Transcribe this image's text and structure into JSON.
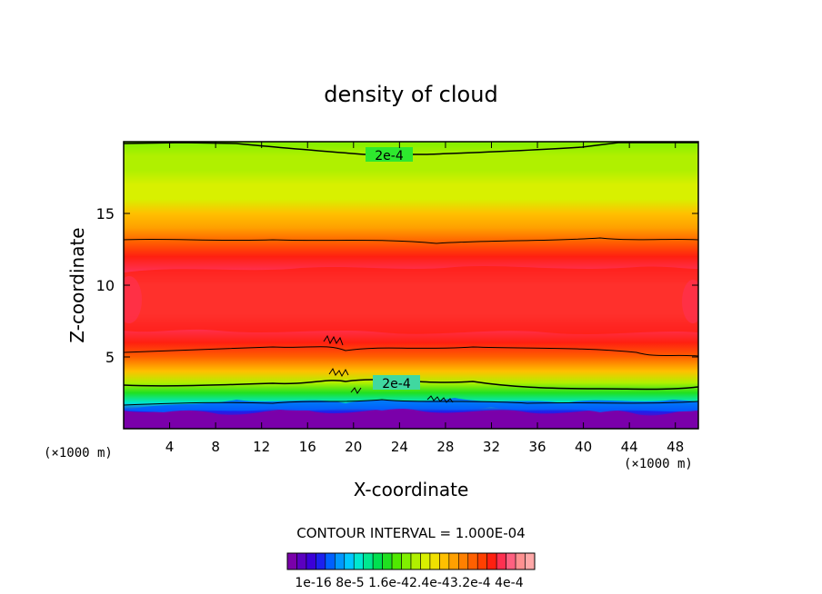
{
  "chart_data": {
    "type": "heatmap",
    "title": "density of cloud",
    "xlabel": "X-coordinate",
    "ylabel": "Z-coordinate",
    "x_unit": "(×1000 m)",
    "z_unit": "(×1000 m)",
    "xlim": [
      0,
      50
    ],
    "ylim": [
      0,
      20
    ],
    "x_ticks": [
      4,
      8,
      12,
      16,
      20,
      24,
      28,
      32,
      36,
      40,
      44,
      48
    ],
    "y_ticks": [
      5,
      10,
      15
    ],
    "x_tick_labels": [
      "4",
      "8",
      "12",
      "16",
      "20",
      "24",
      "28",
      "32",
      "36",
      "40",
      "44",
      "48"
    ],
    "y_tick_labels": [
      "5",
      "10",
      "15"
    ],
    "contour_label_top": "2e-4",
    "contour_label_mid": "2e-4",
    "contour_interval_text": "CONTOUR INTERVAL = 1.000E-04",
    "colorbar_labels": [
      "1e-16",
      "8e-5",
      "1.6e-4",
      "2.4e-4",
      "3.2e-4",
      "4e-4"
    ],
    "colorbar_label_text": "1e-16 8e-5 1.6e-42.4e-43.2e-4 4e-4",
    "vmin": 0,
    "vmax": 0.0004,
    "profile_z": [
      0.6,
      1.2,
      1.8,
      2.5,
      3.2,
      4.0,
      5.0,
      6.0,
      7.0,
      8.0,
      9.0,
      10.0,
      11.0,
      12.0,
      13.0,
      14.0,
      15.0,
      16.0,
      17.0,
      18.0,
      19.0,
      20.0
    ],
    "profile_density": [
      1e-05,
      6e-05,
      0.00011,
      0.00016,
      0.0002,
      0.00025,
      0.0003,
      0.00033,
      0.00035,
      0.00036,
      0.00036,
      0.00036,
      0.00035,
      0.00033,
      0.0003,
      0.00027,
      0.00025,
      0.00023,
      0.00022,
      0.00021,
      0.0002,
      0.00019
    ],
    "colors": [
      "#7a00aa",
      "#5b00c0",
      "#3b00d8",
      "#1c20ee",
      "#0060ff",
      "#0098ff",
      "#00c8ff",
      "#00e8d0",
      "#00e890",
      "#00e050",
      "#20e020",
      "#50e800",
      "#80f000",
      "#b0f000",
      "#d8f000",
      "#f0e000",
      "#ffc000",
      "#ffa000",
      "#ff8000",
      "#ff6000",
      "#ff4000",
      "#ff2010",
      "#ff3050",
      "#ff6080",
      "#ff9090",
      "#ffa8a8"
    ]
  }
}
